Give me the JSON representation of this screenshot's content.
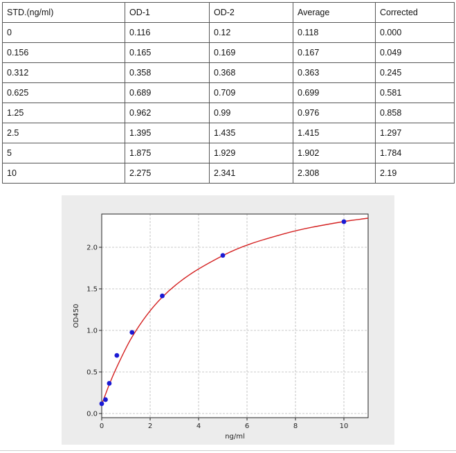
{
  "table": {
    "headers": [
      "STD.(ng/ml)",
      "OD-1",
      "OD-2",
      "Average",
      "Corrected"
    ],
    "rows": [
      [
        "0",
        "0.116",
        "0.12",
        "0.118",
        "0.000"
      ],
      [
        "0.156",
        "0.165",
        "0.169",
        "0.167",
        "0.049"
      ],
      [
        "0.312",
        "0.358",
        "0.368",
        "0.363",
        "0.245"
      ],
      [
        "0.625",
        "0.689",
        "0.709",
        "0.699",
        "0.581"
      ],
      [
        "1.25",
        "0.962",
        "0.99",
        "0.976",
        "0.858"
      ],
      [
        "2.5",
        "1.395",
        "1.435",
        "1.415",
        "1.297"
      ],
      [
        "5",
        "1.875",
        "1.929",
        "1.902",
        "1.784"
      ],
      [
        "10",
        "2.275",
        "2.341",
        "2.308",
        "2.19"
      ]
    ]
  },
  "chart_data": {
    "type": "scatter",
    "title": "",
    "xlabel": "ng/ml",
    "ylabel": "OD450",
    "xlim": [
      0,
      11
    ],
    "ylim": [
      -0.05,
      2.4
    ],
    "xticks": [
      "0",
      "2",
      "4",
      "6",
      "8",
      "10"
    ],
    "yticks": [
      "0.0",
      "0.5",
      "1.0",
      "1.5",
      "2.0"
    ],
    "grid": true,
    "legend": "none",
    "series": [
      {
        "kind": "points",
        "x": [
          0,
          0.156,
          0.312,
          0.625,
          1.25,
          2.5,
          5,
          10
        ],
        "y": [
          0.118,
          0.167,
          0.363,
          0.699,
          0.976,
          1.415,
          1.902,
          2.308
        ]
      },
      {
        "kind": "fitted-curve",
        "x": [
          0,
          0.156,
          0.312,
          0.625,
          1.25,
          2.5,
          5,
          7.5,
          10,
          11
        ],
        "y": [
          0.11,
          0.23,
          0.35,
          0.56,
          0.92,
          1.4,
          1.9,
          2.16,
          2.31,
          2.35
        ]
      }
    ],
    "colors": {
      "points": "#1a1ad4",
      "curve": "#d42020",
      "panel_bg": "#ececec",
      "plot_bg": "#ffffff"
    }
  }
}
